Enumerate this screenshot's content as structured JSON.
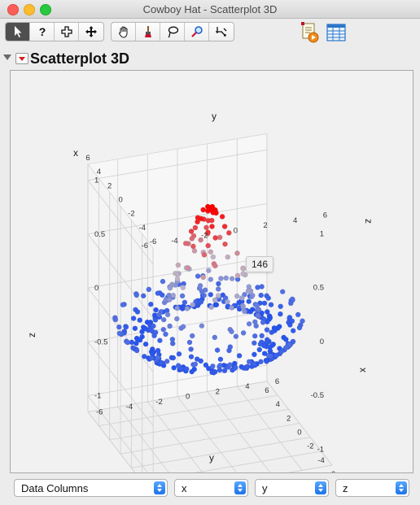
{
  "window": {
    "title": "Cowboy Hat - Scatterplot 3D"
  },
  "toolbar": {
    "tools": [
      "arrow-tool",
      "help-tool",
      "selection-tool",
      "crosshair-tool",
      "grabber-tool",
      "brush-tool",
      "lasso-tool",
      "magnifier-tool",
      "scroller-tool"
    ],
    "right_buttons": [
      "script-icon",
      "data-table-icon"
    ]
  },
  "outline": {
    "title": "Scatterplot 3D"
  },
  "chart_data": {
    "type": "scatter",
    "title": "",
    "dimensions": [
      "x",
      "y",
      "z"
    ],
    "axis_ticks": {
      "x": [
        "6",
        "4",
        "2",
        "0",
        "-2",
        "-4",
        "-6"
      ],
      "y": [
        "6",
        "4",
        "2",
        "0",
        "-2",
        "-4",
        "-6"
      ],
      "z": [
        "1",
        "0.5",
        "0",
        "-0.5",
        "-1"
      ]
    },
    "axis_labels": {
      "front_y": "y",
      "top_y": "y",
      "left_x": "x",
      "right_x": "x",
      "left_z": "z",
      "right_z": "z"
    },
    "color_gradient": {
      "low": "#1e4ef0",
      "high": "#ff0000",
      "mid": "#bfb8c9"
    },
    "surface": "cowboy hat z = sin(r)/r over x,y in [-6,6]",
    "point_count_shown": 420,
    "highlighted_label": "146",
    "show_grid": true
  },
  "dropdowns": [
    {
      "name": "data-columns",
      "label": "Data Columns"
    },
    {
      "name": "x-column",
      "label": "x"
    },
    {
      "name": "y-column",
      "label": "y"
    },
    {
      "name": "z-column",
      "label": "z"
    }
  ]
}
